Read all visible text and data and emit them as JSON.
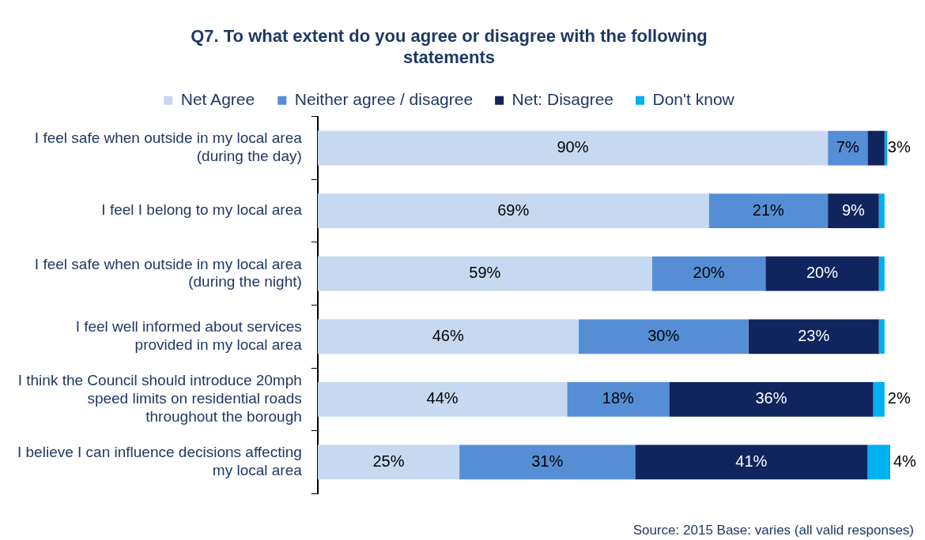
{
  "chart_data": {
    "type": "bar",
    "orientation": "horizontal",
    "stacked": true,
    "title": "Q7. To what extent do you agree or disagree with the following statements",
    "categories": [
      "I feel safe when outside in my local area (during the day)",
      "I feel I belong to my local area",
      "I feel safe when outside in my local area (during the night)",
      "I feel well informed about services provided in my local area",
      "I think the Council should introduce 20mph speed limits on residential roads throughout the borough",
      "I believe I can influence decisions affecting my local area"
    ],
    "series": [
      {
        "name": "Net Agree",
        "color": "#c6d9f1",
        "values": [
          90,
          69,
          59,
          46,
          44,
          25
        ],
        "value_labels": [
          "90%",
          "69%",
          "59%",
          "46%",
          "44%",
          "25%"
        ]
      },
      {
        "name": "Neither agree / disagree",
        "color": "#558ed5",
        "values": [
          7,
          21,
          20,
          30,
          18,
          31
        ],
        "value_labels": [
          "7%",
          "21%",
          "20%",
          "30%",
          "18%",
          "31%"
        ]
      },
      {
        "name": "Net: Disagree",
        "color": "#10245e",
        "values": [
          3,
          9,
          20,
          23,
          36,
          41
        ],
        "value_labels": [
          "3%",
          "9%",
          "20%",
          "23%",
          "36%",
          "41%"
        ]
      },
      {
        "name": "Don't know",
        "color": "#00b0f0",
        "values": [
          0.5,
          1,
          1,
          1,
          2,
          4
        ],
        "value_labels": [
          null,
          null,
          null,
          null,
          "2%",
          "4%"
        ]
      }
    ],
    "xlim": [
      0,
      101
    ],
    "tick_labels": "y",
    "grid": false,
    "legend": "top",
    "annotations": [
      "Source: 2015   Base: varies (all valid responses)"
    ]
  }
}
